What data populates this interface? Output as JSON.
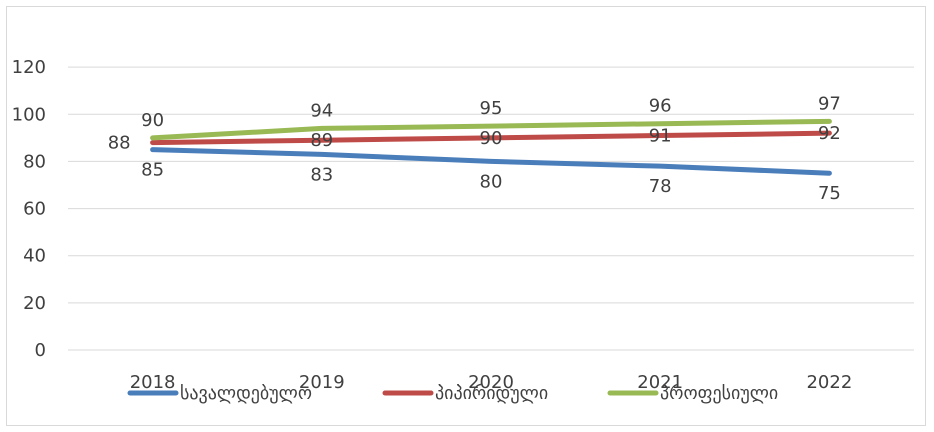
{
  "chart_data": {
    "type": "line",
    "title": "",
    "xlabel": "",
    "ylabel": "",
    "categories": [
      "2018",
      "2019",
      "2020",
      "2021",
      "2022"
    ],
    "ylim": [
      0,
      140
    ],
    "yticks": [
      "0",
      "20",
      "40",
      "60",
      "80",
      "100",
      "120"
    ],
    "grid": true,
    "legend_position": "bottom",
    "series": [
      {
        "name": "სავალდებულო",
        "color": "#4a7ebb",
        "values": [
          85,
          83,
          80,
          78,
          75
        ],
        "labels": [
          "85",
          "83",
          "80",
          "78",
          "75"
        ],
        "label_side": "below"
      },
      {
        "name": "პიპირიდული",
        "color": "#be4b48",
        "values": [
          88,
          89,
          90,
          91,
          92
        ],
        "labels": [
          "88",
          "89",
          "90",
          "91",
          "92"
        ],
        "label_side": "center"
      },
      {
        "name": "პროფესიული",
        "color": "#98b954",
        "values": [
          90,
          94,
          95,
          96,
          97
        ],
        "labels": [
          "90",
          "94",
          "95",
          "96",
          "97"
        ],
        "label_side": "above"
      }
    ]
  }
}
